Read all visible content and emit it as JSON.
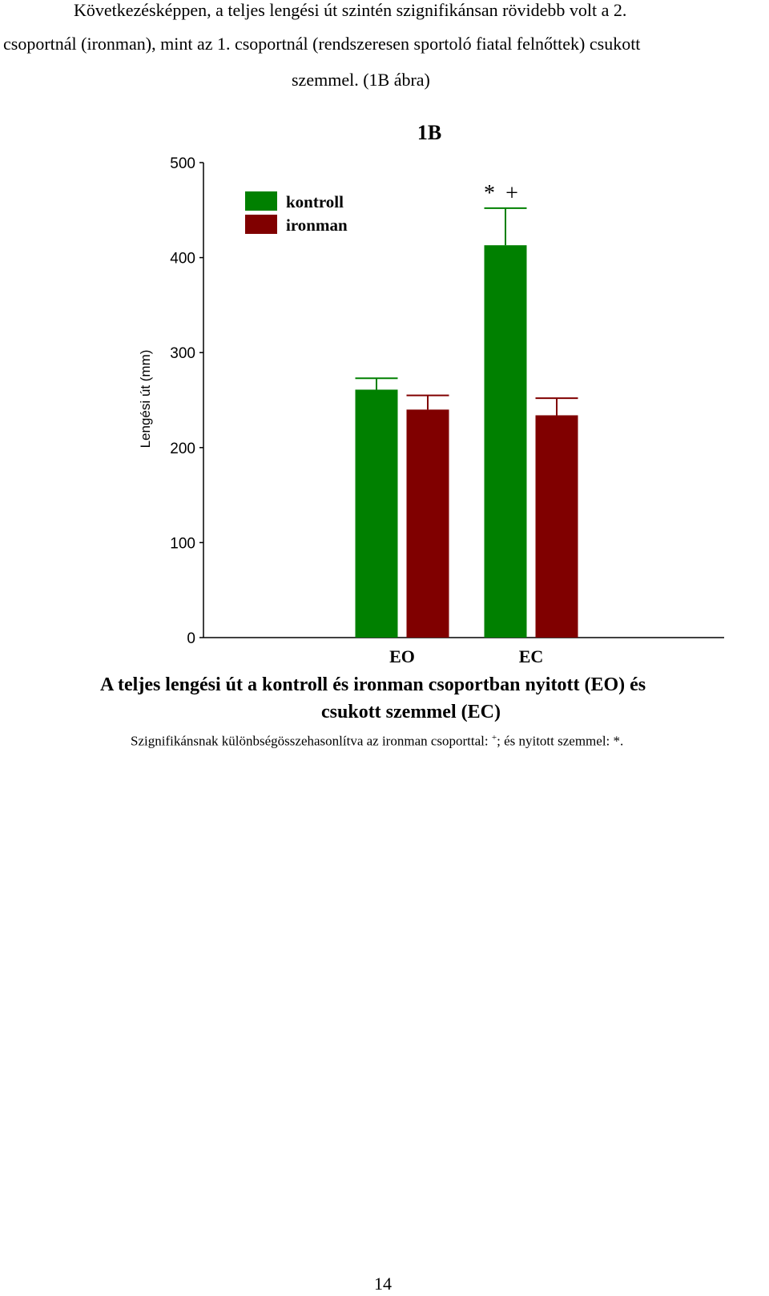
{
  "paragraph": {
    "lines": [
      "Következésképpen, a teljes lengési út szintén szignifikánsan rövidebb volt a 2.",
      "csoportnál (ironman), mint az 1. csoportnál (rendszeresen sportoló fiatal felnőttek) csukott",
      "szemmel. (1B ábra)"
    ]
  },
  "chart_data": {
    "type": "bar",
    "title": "1B",
    "ylabel": "Lengési út (mm)",
    "xlabel": "",
    "ylim": [
      0,
      500
    ],
    "yticks": [
      "0",
      "100",
      "200",
      "300",
      "400",
      "500"
    ],
    "categories": [
      "EO",
      "EC"
    ],
    "series": [
      {
        "name": "kontroll",
        "values": [
          261,
          413
        ],
        "errors": [
          12,
          39
        ],
        "color": "#008000"
      },
      {
        "name": "ironman",
        "values": [
          240,
          234
        ],
        "errors": [
          15,
          18
        ],
        "color": "#800000"
      }
    ],
    "annotations": [
      {
        "text": "*",
        "category": "EC",
        "series": "kontroll"
      },
      {
        "text": "+",
        "category": "EC",
        "series": "kontroll"
      }
    ],
    "legend_position": "top-left",
    "grid": false
  },
  "caption": {
    "title_line1": "A teljes lengési út a kontroll és ironman csoportban nyitott (EO) és",
    "title_line2": "csukott szemmel (EC)",
    "note_main": "Szignifikánsnak különbségösszehasonlítva az ironman csoporttal: ",
    "note_sup": "+",
    "note_tail": "; és nyitott szemmel: *."
  },
  "page_number": "14"
}
